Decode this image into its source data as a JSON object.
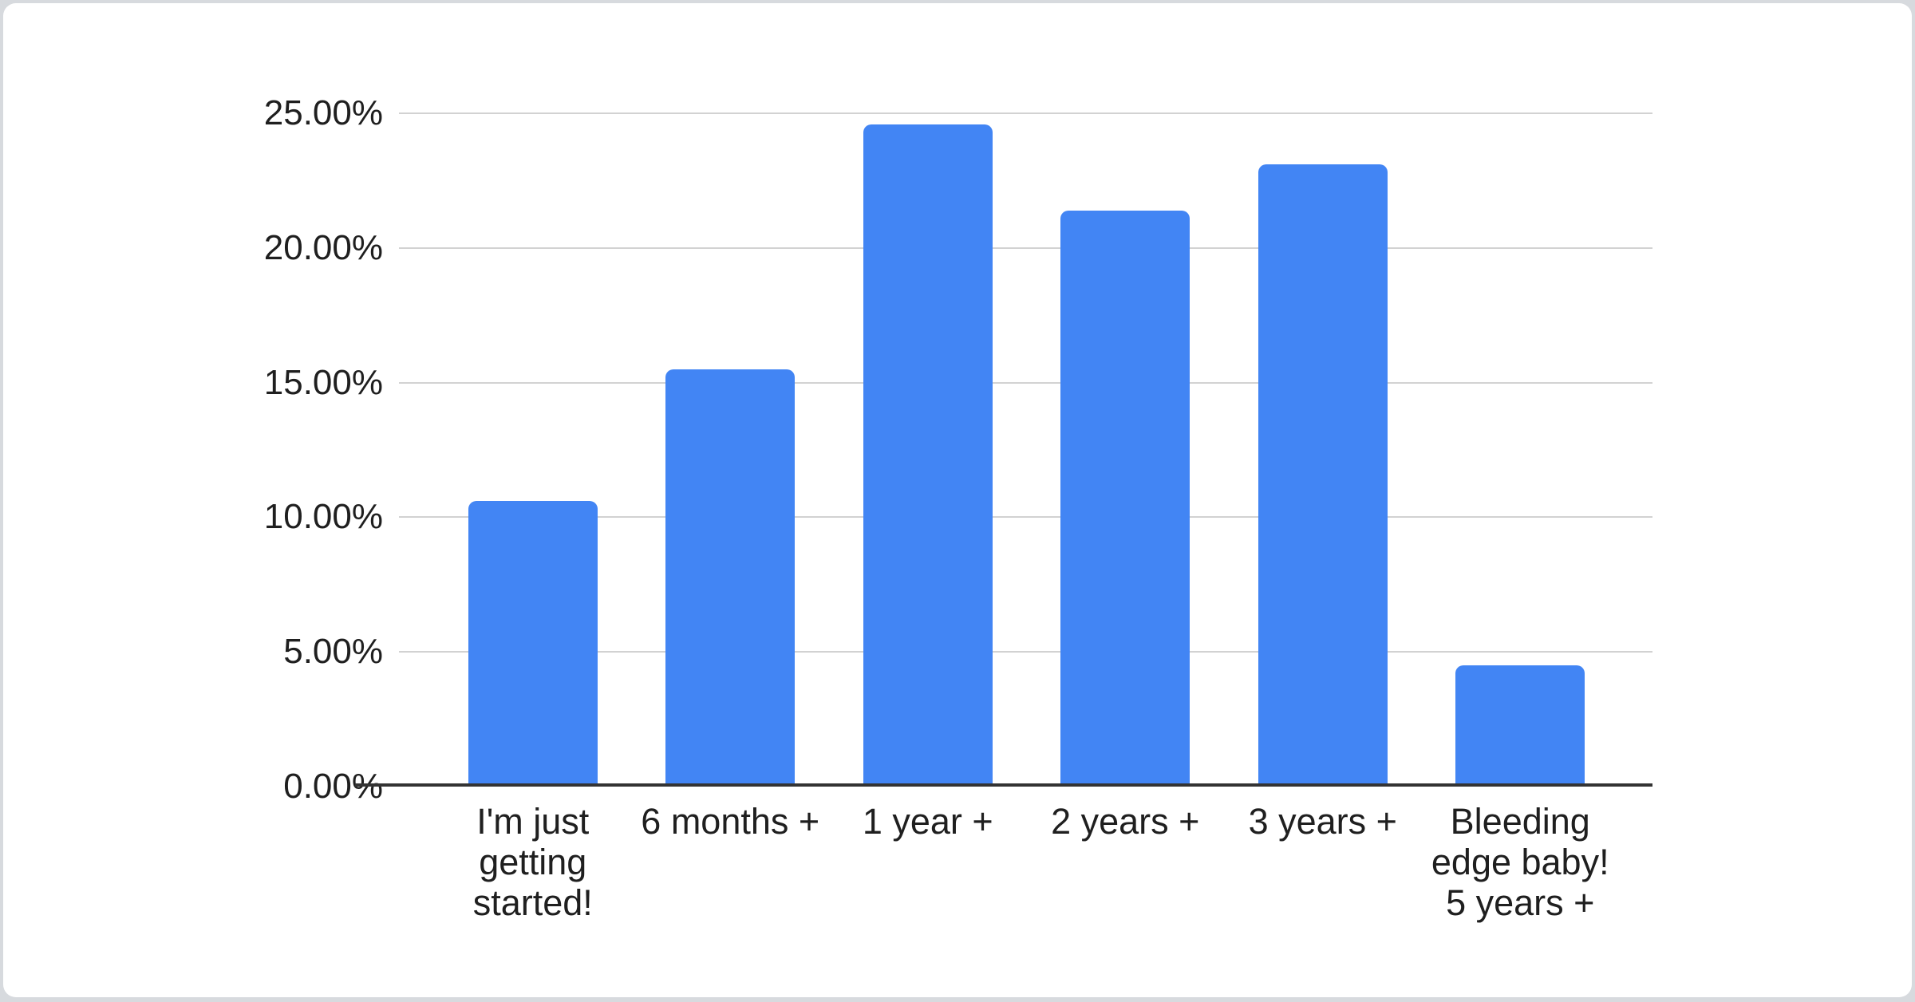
{
  "chart_data": {
    "type": "bar",
    "title": "",
    "categories": [
      "I'm just getting started!",
      "6 months +",
      "1 year +",
      "2 years +",
      "3 years +",
      "Bleeding edge baby! 5 years +"
    ],
    "category_lines": [
      [
        "I'm just",
        "getting",
        "started!"
      ],
      [
        "6 months +"
      ],
      [
        "1 year +"
      ],
      [
        "2 years +"
      ],
      [
        "3 years +"
      ],
      [
        "Bleeding",
        "edge baby!",
        "5 years +"
      ]
    ],
    "values": [
      10.6,
      15.5,
      24.6,
      21.4,
      23.1,
      4.5
    ],
    "unit": "%",
    "y_ticks": [
      "0.00%",
      "5.00%",
      "10.00%",
      "15.00%",
      "20.00%",
      "25.00%"
    ],
    "y_tick_values": [
      0,
      5,
      10,
      15,
      20,
      25
    ],
    "ylim": [
      0,
      25
    ],
    "grid": "horizontal",
    "legend": "none",
    "colors": {
      "bar": "#4285f4",
      "axis_line": "#333333",
      "gridline": "#d2d2d2",
      "label_text": "#1f1f1f",
      "card_background": "#ffffff",
      "page_background": "#d7dade"
    }
  }
}
